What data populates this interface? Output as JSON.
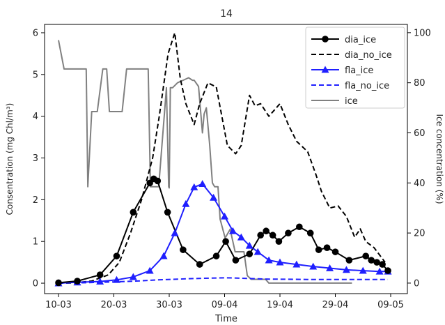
{
  "chart_data": {
    "type": "line",
    "title": "14",
    "xlabel": "Time",
    "ylabel": "Consentration (mg Chl/m³)",
    "y2label": "Ice concentration (%)",
    "x_ticks": [
      "10-03",
      "20-03",
      "30-03",
      "09-04",
      "19-04",
      "29-04",
      "09-05"
    ],
    "y_ticks": [
      "0",
      "1",
      "2",
      "3",
      "4",
      "5",
      "6"
    ],
    "y2_ticks": [
      "0",
      "20",
      "40",
      "60",
      "80",
      "100"
    ],
    "ylim": [
      -0.25,
      6.2
    ],
    "y2lim": [
      -4.2,
      103.3
    ],
    "x_days": [
      0,
      60
    ],
    "legend_position": "top-right",
    "series": [
      {
        "name": "dia_ice",
        "axis": "left",
        "color": "#000000",
        "dash": "solid",
        "marker": "circle",
        "x": [
          0.0,
          3.4,
          7.5,
          10.5,
          13.5,
          16.5,
          17.2,
          17.9,
          19.7,
          22.5,
          25.5,
          28.5,
          30.2,
          32.0,
          34.5,
          36.5,
          37.5,
          38.7,
          39.8,
          41.5,
          43.5,
          45.5,
          47.0,
          48.5,
          50.0,
          52.5,
          55.5,
          56.5,
          57.5,
          58.5,
          59.5
        ],
        "y": [
          0.01,
          0.05,
          0.2,
          0.65,
          1.7,
          2.4,
          2.5,
          2.45,
          1.7,
          0.8,
          0.45,
          0.65,
          1.0,
          0.55,
          0.7,
          1.15,
          1.25,
          1.15,
          1.0,
          1.2,
          1.35,
          1.2,
          0.8,
          0.85,
          0.75,
          0.55,
          0.65,
          0.55,
          0.5,
          0.45,
          0.3
        ]
      },
      {
        "name": "dia_no_ice",
        "axis": "left",
        "color": "#000000",
        "dash": "dashed",
        "marker": "none",
        "x": [
          0.0,
          3.0,
          6.0,
          9.0,
          11.0,
          13.0,
          15.0,
          17.0,
          18.2,
          19.8,
          21.0,
          22.0,
          23.0,
          24.5,
          25.5,
          27.0,
          28.5,
          30.5,
          32.0,
          33.0,
          34.5,
          35.5,
          36.5,
          38.0,
          40.0,
          41.5,
          43.0,
          45.0,
          46.5,
          47.5,
          49.0,
          50.5,
          52.0,
          53.5,
          54.5,
          55.5,
          57.0,
          59.0
        ],
        "y": [
          0.0,
          0.01,
          0.05,
          0.2,
          0.5,
          1.2,
          2.0,
          3.0,
          4.0,
          5.5,
          6.0,
          4.9,
          4.3,
          3.8,
          4.3,
          4.8,
          4.7,
          3.3,
          3.1,
          3.3,
          4.5,
          4.25,
          4.3,
          4.0,
          4.3,
          3.8,
          3.4,
          3.15,
          2.6,
          2.2,
          1.8,
          1.85,
          1.6,
          1.1,
          1.3,
          1.0,
          0.85,
          0.5
        ]
      },
      {
        "name": "fla_ice",
        "axis": "left",
        "color": "#1f1fff",
        "dash": "solid",
        "marker": "triangle",
        "x": [
          0.0,
          3.4,
          7.5,
          10.5,
          13.5,
          16.5,
          19.0,
          21.0,
          23.0,
          24.5,
          26.0,
          28.0,
          30.0,
          31.5,
          33.0,
          34.5,
          36.0,
          38.0,
          40.0,
          43.0,
          46.0,
          49.0,
          52.0,
          55.0,
          58.0,
          59.5
        ],
        "y": [
          0.0,
          0.02,
          0.04,
          0.08,
          0.15,
          0.3,
          0.65,
          1.2,
          1.9,
          2.3,
          2.38,
          2.05,
          1.6,
          1.25,
          1.1,
          0.9,
          0.75,
          0.55,
          0.5,
          0.45,
          0.4,
          0.36,
          0.32,
          0.3,
          0.28,
          0.28
        ]
      },
      {
        "name": "fla_no_ice",
        "axis": "left",
        "color": "#1f1fff",
        "dash": "dashed",
        "marker": "none",
        "x": [
          0.0,
          5.0,
          10.0,
          14.0,
          18.0,
          24.0,
          30.0,
          33.0,
          37.0,
          45.0,
          55.0,
          59.5
        ],
        "y": [
          0.0,
          0.01,
          0.03,
          0.05,
          0.08,
          0.11,
          0.13,
          0.12,
          0.1,
          0.09,
          0.09,
          0.09
        ]
      },
      {
        "name": "ice",
        "axis": "right",
        "color": "#808080",
        "dash": "solid",
        "marker": "none",
        "x": [
          0.0,
          1.0,
          3.0,
          5.0,
          5.3,
          6.0,
          7.0,
          8.0,
          8.7,
          9.2,
          10.0,
          11.5,
          12.3,
          13.0,
          16.2,
          16.6,
          17.2,
          18.1,
          19.5,
          19.9,
          20.0,
          20.2,
          20.6,
          21.5,
          22.5,
          23.5,
          24.2,
          24.5,
          25.3,
          26.0,
          26.3,
          26.7,
          27.3,
          27.8,
          28.2,
          28.8,
          29.2,
          30.1,
          31.0,
          31.9,
          33.5,
          34.1,
          34.8,
          35.9,
          36.5,
          37.4,
          38.0,
          45.0,
          53.0
        ],
        "y": [
          97.0,
          85.5,
          85.5,
          85.5,
          38.5,
          68.5,
          68.5,
          85.5,
          85.5,
          68.5,
          68.5,
          68.5,
          85.5,
          85.5,
          85.5,
          38.5,
          38.5,
          38.5,
          78.0,
          38.5,
          38.0,
          78.0,
          78.0,
          80.0,
          81.0,
          82.0,
          81.0,
          81.0,
          78.5,
          60.0,
          67.5,
          70.0,
          55.5,
          40.0,
          38.5,
          38.5,
          25.5,
          18.0,
          21.5,
          12.5,
          12.5,
          3.0,
          1.5,
          1.5,
          1.5,
          1.5,
          0.0,
          0.0,
          0.0
        ]
      }
    ]
  }
}
